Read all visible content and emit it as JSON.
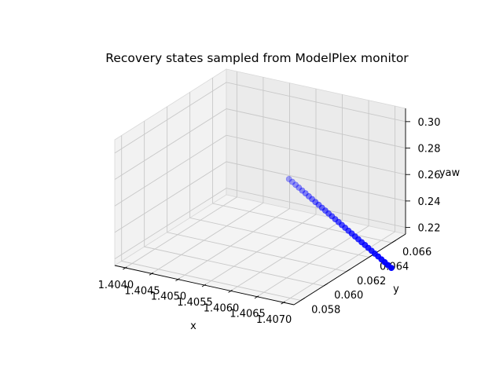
{
  "chart_data": {
    "type": "scatter",
    "projection": "3d",
    "title": "Recovery states sampled from ModelPlex monitor",
    "xlabel": "x",
    "ylabel": "y",
    "zlabel": "yaw",
    "x_ticks": [
      "1.4040",
      "1.4045",
      "1.4050",
      "1.4055",
      "1.4060",
      "1.4065",
      "1.4070"
    ],
    "y_ticks": [
      "0.058",
      "0.060",
      "0.062",
      "0.064",
      "0.066"
    ],
    "z_ticks": [
      "0.22",
      "0.24",
      "0.26",
      "0.28",
      "0.30"
    ],
    "xlim": [
      1.4038,
      1.4072
    ],
    "ylim": [
      0.0574,
      0.0672
    ],
    "zlim": [
      0.215,
      0.31
    ],
    "grid": true,
    "marker_color": "#0000ff",
    "depthshade": true,
    "points": [
      {
        "x": 1.40708,
        "y": 0.05752,
        "z": 0.3083
      },
      {
        "x": 1.40708,
        "y": 0.05781,
        "z": 0.3046
      },
      {
        "x": 1.40708,
        "y": 0.0581,
        "z": 0.3008
      },
      {
        "x": 1.40708,
        "y": 0.05839,
        "z": 0.2971
      },
      {
        "x": 1.40708,
        "y": 0.05868,
        "z": 0.2933
      },
      {
        "x": 1.40708,
        "y": 0.05897,
        "z": 0.2896
      },
      {
        "x": 1.40708,
        "y": 0.05926,
        "z": 0.2858
      },
      {
        "x": 1.40708,
        "y": 0.05955,
        "z": 0.2821
      },
      {
        "x": 1.40708,
        "y": 0.05984,
        "z": 0.2783
      },
      {
        "x": 1.40708,
        "y": 0.06013,
        "z": 0.2746
      },
      {
        "x": 1.40708,
        "y": 0.06042,
        "z": 0.2708
      },
      {
        "x": 1.40708,
        "y": 0.06071,
        "z": 0.2671
      },
      {
        "x": 1.40708,
        "y": 0.061,
        "z": 0.2633
      },
      {
        "x": 1.40708,
        "y": 0.06129,
        "z": 0.2596
      },
      {
        "x": 1.40708,
        "y": 0.06158,
        "z": 0.2558
      },
      {
        "x": 1.40708,
        "y": 0.06187,
        "z": 0.2521
      },
      {
        "x": 1.40708,
        "y": 0.06216,
        "z": 0.2483
      },
      {
        "x": 1.40708,
        "y": 0.06245,
        "z": 0.2446
      },
      {
        "x": 1.40708,
        "y": 0.06274,
        "z": 0.2408
      },
      {
        "x": 1.40708,
        "y": 0.06303,
        "z": 0.2371
      },
      {
        "x": 1.40708,
        "y": 0.06332,
        "z": 0.2333
      },
      {
        "x": 1.40708,
        "y": 0.06361,
        "z": 0.2296
      },
      {
        "x": 1.40708,
        "y": 0.0639,
        "z": 0.2258
      },
      {
        "x": 1.40708,
        "y": 0.06419,
        "z": 0.2221
      },
      {
        "x": 1.40708,
        "y": 0.06448,
        "z": 0.2183
      },
      {
        "x": 1.40708,
        "y": 0.06477,
        "z": 0.2146
      },
      {
        "x": 1.40708,
        "y": 0.06506,
        "z": 0.2108
      },
      {
        "x": 1.40708,
        "y": 0.06535,
        "z": 0.2071
      },
      {
        "x": 1.40708,
        "y": 0.06564,
        "z": 0.2033
      },
      {
        "x": 1.40708,
        "y": 0.06593,
        "z": 0.1996
      },
      {
        "x": 1.40708,
        "y": 0.06622,
        "z": 0.1958
      },
      {
        "x": 1.40708,
        "y": 0.06651,
        "z": 0.1921
      }
    ]
  }
}
